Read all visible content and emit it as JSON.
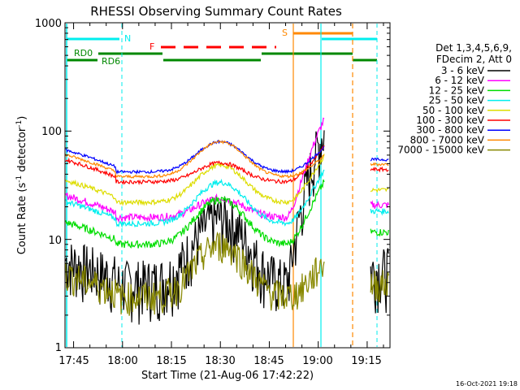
{
  "chart_data": {
    "type": "line",
    "title": "RHESSI Observing Summary Count Rates",
    "xlabel": "Start Time (21-Aug-06 17:42:22)",
    "ylabel_main": "Count Rate (s",
    "ylabel_sup1": "-1",
    "ylabel_mid": " detector",
    "ylabel_sup2": "-1",
    "ylabel_end": ")",
    "y_scale": "log",
    "ylim": [
      1,
      1000
    ],
    "x_range_minutes": [
      "17:42:22",
      "19:22:00"
    ],
    "x_tick_labels": [
      "17:45",
      "18:00",
      "18:15",
      "18:30",
      "18:45",
      "19:00",
      "19:15"
    ],
    "y_tick_labels": [
      "1",
      "10",
      "100",
      "1000"
    ],
    "legend_header": [
      "Det 1,3,4,5,6,9,",
      "FDecim 2, Att 0"
    ],
    "legend_position": "right",
    "timestamp": "16-Oct-2021 19:18",
    "series": [
      {
        "name": "3 - 6 keV",
        "color": "#000000",
        "y_at_19_00": 40
      },
      {
        "name": "6 - 12 keV",
        "color": "#ff00ff",
        "y_at_19_00": 90
      },
      {
        "name": "12 - 25 keV",
        "color": "#00dd00",
        "y_at_19_00": 40
      },
      {
        "name": "25 - 50 keV",
        "color": "#00eeee",
        "y_at_19_00": 35
      },
      {
        "name": "50 - 100 keV",
        "color": "#dddd00",
        "y_at_19_00": 40
      },
      {
        "name": "100 - 300 keV",
        "color": "#ff0000",
        "y_at_19_00": 50
      },
      {
        "name": "300 - 800 keV",
        "color": "#0000ff",
        "y_at_19_00": 72
      },
      {
        "name": "800 - 7000 keV",
        "color": "#ff8800",
        "y_at_19_00": 70
      },
      {
        "name": "7000 - 15000 keV",
        "color": "#888800",
        "y_at_19_00": 6
      }
    ],
    "flags": {
      "N": {
        "label": "N",
        "color": "#00eeee"
      },
      "F": {
        "label": "F",
        "color": "#ff0000"
      },
      "S": {
        "label": "S",
        "color": "#ff8800"
      },
      "RD0": {
        "label": "RD0",
        "color": "#008800"
      },
      "RD6": {
        "label": "RD6",
        "color": "#008800"
      }
    }
  }
}
